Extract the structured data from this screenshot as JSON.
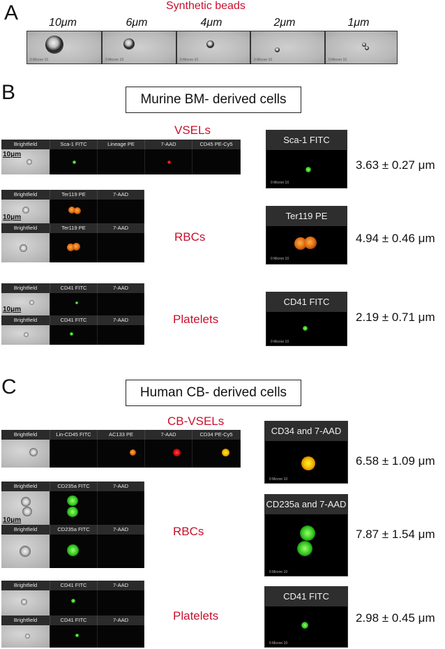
{
  "panels": {
    "a": "A",
    "b": "B",
    "c": "C"
  },
  "synthetic": {
    "title": "Synthetic beads",
    "sizes": [
      "10μm",
      "6μm",
      "4μm",
      "2μm",
      "1μm"
    ]
  },
  "murine": {
    "title": "Murine BM- derived cells",
    "vsels": {
      "label": "VSELs",
      "headers": [
        "Brightfield",
        "Sca-1 FITC",
        "Lineage PE",
        "7-AAD",
        "CD45 PE-Cy5"
      ],
      "scale": "10μm"
    },
    "rbcs": {
      "label": "RBCs",
      "headers": [
        "Brightfield",
        "Ter119 PE",
        "7-AAD"
      ],
      "scale": "10μm"
    },
    "platelets": {
      "label": "Platelets",
      "headers": [
        "Brightfield",
        "CD41 FITC",
        "7-AAD"
      ],
      "scale": "10μm"
    },
    "zoom": [
      {
        "title": "Sca-1 FITC",
        "measure": "3.63 ± 0.27 μm"
      },
      {
        "title": "Ter119 PE",
        "measure": "4.94 ± 0.46 μm"
      },
      {
        "title": "CD41 FITC",
        "measure": "2.19 ± 0.71 μm"
      }
    ]
  },
  "human": {
    "title": "Human CB- derived cells",
    "vsels": {
      "label": "CB-VSELs",
      "headers": [
        "Brightfield",
        "Lin-CD45 FITC",
        "AC133 PE",
        "7-AAD",
        "CD34 PE-Cy5"
      ]
    },
    "rbcs": {
      "label": "RBCs",
      "headers": [
        "Brightfield",
        "CD235a FITC",
        "7-AAD"
      ],
      "scale": "10μm"
    },
    "platelets": {
      "label": "Platelets",
      "headers": [
        "Brightfield",
        "CD41 FITC",
        "7-AAD"
      ]
    },
    "zoom": [
      {
        "title": "CD34 and 7-AAD",
        "measure": "6.58 ± 1.09 μm"
      },
      {
        "title": "CD235a and 7-AAD",
        "measure": "7.87 ± 1.54 μm"
      },
      {
        "title": "CD41 FITC",
        "measure": "2.98 ± 0.45 μm"
      }
    ]
  },
  "mini_scale": "0 Micron 10"
}
